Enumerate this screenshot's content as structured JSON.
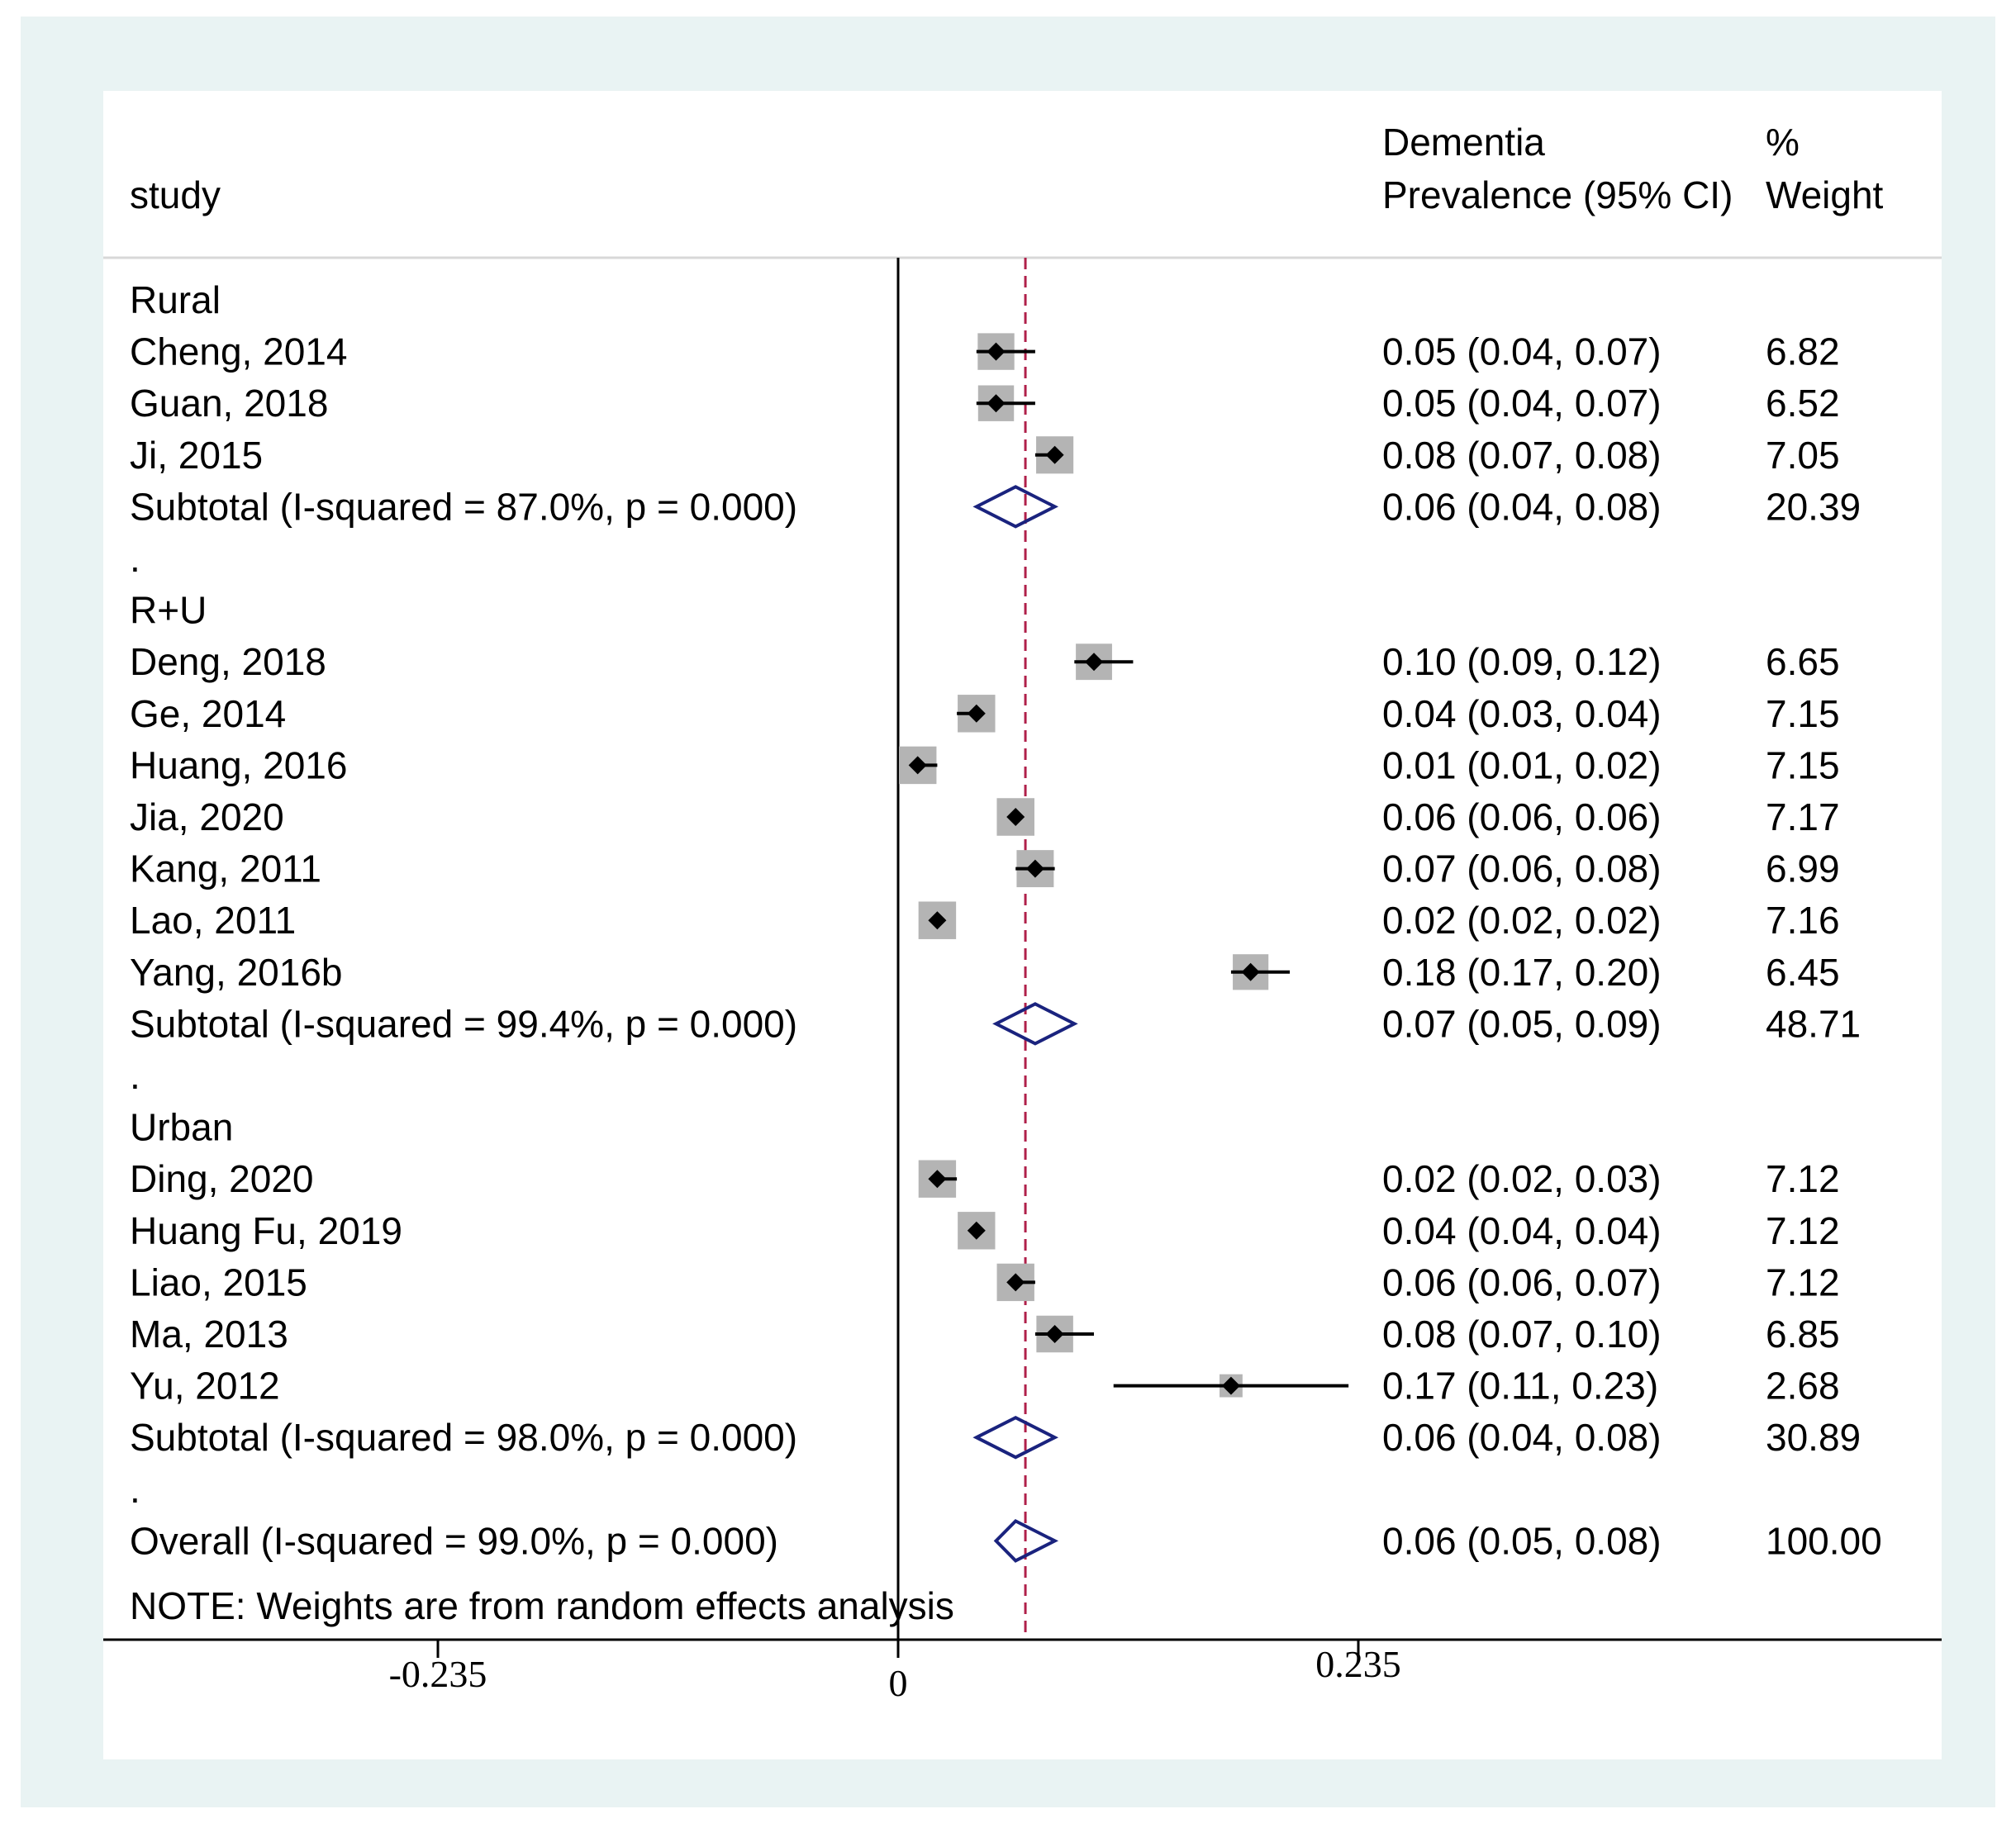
{
  "chart_data": {
    "type": "forest",
    "headers": {
      "study": "study",
      "estimate_line1": "Dementia",
      "estimate_line2": "Prevalence (95% CI)",
      "weight_line1": "%",
      "weight_line2": "Weight"
    },
    "groups": [
      {
        "name": "Rural",
        "studies": [
          {
            "label": "Cheng, 2014",
            "est": 0.05,
            "lo": 0.04,
            "hi": 0.07,
            "ci_text": "0.05 (0.04, 0.07)",
            "weight": "6.82"
          },
          {
            "label": "Guan, 2018",
            "est": 0.05,
            "lo": 0.04,
            "hi": 0.07,
            "ci_text": "0.05 (0.04, 0.07)",
            "weight": "6.52"
          },
          {
            "label": "Ji, 2015",
            "est": 0.08,
            "lo": 0.07,
            "hi": 0.08,
            "ci_text": "0.08 (0.07, 0.08)",
            "weight": "7.05"
          }
        ],
        "subtotal": {
          "label": "Subtotal  (I-squared = 87.0%, p = 0.000)",
          "est": 0.06,
          "lo": 0.04,
          "hi": 0.08,
          "ci_text": "0.06 (0.04, 0.08)",
          "weight": "20.39"
        }
      },
      {
        "name": "R+U",
        "studies": [
          {
            "label": "Deng, 2018",
            "est": 0.1,
            "lo": 0.09,
            "hi": 0.12,
            "ci_text": "0.10 (0.09, 0.12)",
            "weight": "6.65"
          },
          {
            "label": "Ge, 2014",
            "est": 0.04,
            "lo": 0.03,
            "hi": 0.04,
            "ci_text": "0.04 (0.03, 0.04)",
            "weight": "7.15"
          },
          {
            "label": "Huang, 2016",
            "est": 0.01,
            "lo": 0.01,
            "hi": 0.02,
            "ci_text": "0.01 (0.01, 0.02)",
            "weight": "7.15"
          },
          {
            "label": "Jia, 2020",
            "est": 0.06,
            "lo": 0.06,
            "hi": 0.06,
            "ci_text": "0.06 (0.06, 0.06)",
            "weight": "7.17"
          },
          {
            "label": "Kang, 2011",
            "est": 0.07,
            "lo": 0.06,
            "hi": 0.08,
            "ci_text": "0.07 (0.06, 0.08)",
            "weight": "6.99"
          },
          {
            "label": "Lao, 2011",
            "est": 0.02,
            "lo": 0.02,
            "hi": 0.02,
            "ci_text": "0.02 (0.02, 0.02)",
            "weight": "7.16"
          },
          {
            "label": "Yang, 2016b",
            "est": 0.18,
            "lo": 0.17,
            "hi": 0.2,
            "ci_text": "0.18 (0.17, 0.20)",
            "weight": "6.45"
          }
        ],
        "subtotal": {
          "label": "Subtotal  (I-squared = 99.4%, p = 0.000)",
          "est": 0.07,
          "lo": 0.05,
          "hi": 0.09,
          "ci_text": "0.07 (0.05, 0.09)",
          "weight": "48.71"
        }
      },
      {
        "name": "Urban",
        "studies": [
          {
            "label": "Ding, 2020",
            "est": 0.02,
            "lo": 0.02,
            "hi": 0.03,
            "ci_text": "0.02 (0.02, 0.03)",
            "weight": "7.12"
          },
          {
            "label": "Huang Fu, 2019",
            "est": 0.04,
            "lo": 0.04,
            "hi": 0.04,
            "ci_text": "0.04 (0.04, 0.04)",
            "weight": "7.12"
          },
          {
            "label": "Liao, 2015",
            "est": 0.06,
            "lo": 0.06,
            "hi": 0.07,
            "ci_text": "0.06 (0.06, 0.07)",
            "weight": "7.12"
          },
          {
            "label": "Ma, 2013",
            "est": 0.08,
            "lo": 0.07,
            "hi": 0.1,
            "ci_text": "0.08 (0.07, 0.10)",
            "weight": "6.85"
          },
          {
            "label": "Yu, 2012",
            "est": 0.17,
            "lo": 0.11,
            "hi": 0.23,
            "ci_text": "0.17 (0.11, 0.23)",
            "weight": "2.68"
          }
        ],
        "subtotal": {
          "label": "Subtotal  (I-squared = 98.0%, p = 0.000)",
          "est": 0.06,
          "lo": 0.04,
          "hi": 0.08,
          "ci_text": "0.06 (0.04, 0.08)",
          "weight": "30.89"
        }
      }
    ],
    "overall": {
      "label": "Overall  (I-squared = 99.0%, p = 0.000)",
      "est": 0.06,
      "lo": 0.05,
      "hi": 0.08,
      "ci_text": "0.06 (0.05, 0.08)",
      "weight": "100.00"
    },
    "separator": ".",
    "note": "NOTE: Weights are from random effects analysis",
    "x_ticks": [
      {
        "value": -0.235,
        "label": "-0.235"
      },
      {
        "value": 0,
        "label": "0"
      },
      {
        "value": 0.235,
        "label": "0.235"
      }
    ],
    "xlim": [
      -0.405,
      0.53
    ],
    "null_line": 0,
    "pooled_line": 0.065,
    "colors": {
      "outer_background": "#e9f3f3",
      "panel": "#ffffff",
      "ink": "#000000",
      "box": "#b4b4b4",
      "diamond": "#1a237e",
      "reference_line": "#b0204a"
    }
  }
}
